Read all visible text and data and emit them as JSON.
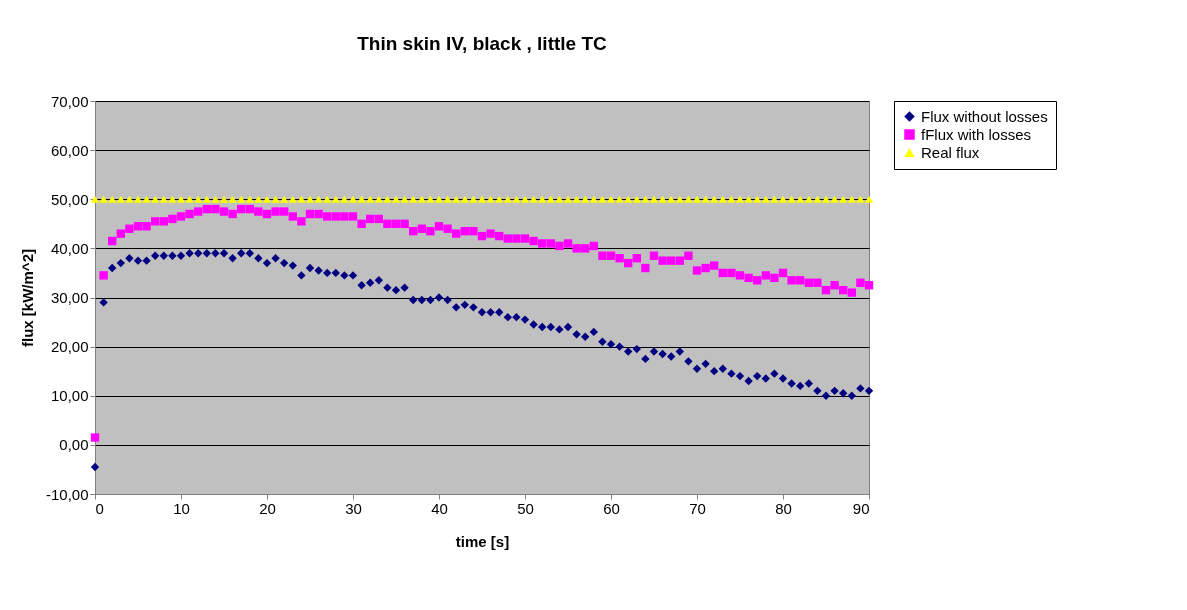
{
  "chart_data": {
    "type": "scatter",
    "title": "Thin skin IV, black , little TC",
    "xlabel": "time [s]",
    "ylabel": "flux [kW/m^2]",
    "x": [
      0,
      1,
      2,
      3,
      4,
      5,
      6,
      7,
      8,
      9,
      10,
      11,
      12,
      13,
      14,
      15,
      16,
      17,
      18,
      19,
      20,
      21,
      22,
      23,
      24,
      25,
      26,
      27,
      28,
      29,
      30,
      31,
      32,
      33,
      34,
      35,
      36,
      37,
      38,
      39,
      40,
      41,
      42,
      43,
      44,
      45,
      46,
      47,
      48,
      49,
      50,
      51,
      52,
      53,
      54,
      55,
      56,
      57,
      58,
      59,
      60,
      61,
      62,
      63,
      64,
      65,
      66,
      67,
      68,
      69,
      70,
      71,
      72,
      73,
      74,
      75,
      76,
      77,
      78,
      79,
      80,
      81,
      82,
      83,
      84,
      85,
      86,
      87,
      88,
      89,
      90
    ],
    "series": [
      {
        "name": "Flux without losses",
        "color": "#000080",
        "marker": "diamond",
        "values": [
          -4.5,
          29,
          36,
          37,
          38,
          37.5,
          37.5,
          38.5,
          38.5,
          38.5,
          38.5,
          39,
          39,
          39,
          39,
          39,
          38,
          39,
          39,
          38,
          37,
          38,
          37,
          36.5,
          34.5,
          36,
          35.5,
          35,
          35,
          34.5,
          34.5,
          32.5,
          33,
          33.5,
          32,
          31.5,
          32,
          29.5,
          29.5,
          29.5,
          30,
          29.5,
          28,
          28.5,
          28,
          27,
          27,
          27,
          26,
          26,
          25.5,
          24.5,
          24,
          24,
          23.5,
          24,
          22.5,
          22,
          23,
          21,
          20.5,
          20,
          19,
          19.5,
          17.5,
          19,
          18.5,
          18,
          19,
          17,
          15.5,
          16.5,
          15,
          15.5,
          14.5,
          14,
          13,
          14,
          13.5,
          14.5,
          13.5,
          12.5,
          12,
          12.5,
          11,
          10,
          11,
          10.5,
          10,
          11.5,
          11
        ]
      },
      {
        "name": "fFlux with losses",
        "color": "#ff00ff",
        "marker": "square",
        "values": [
          1.5,
          34.5,
          41.5,
          43,
          44,
          44.5,
          44.5,
          45.5,
          45.5,
          46,
          46.5,
          47,
          47.5,
          48,
          48,
          47.5,
          47,
          48,
          48,
          47.5,
          47,
          47.5,
          47.5,
          46.5,
          45.5,
          47,
          47,
          46.5,
          46.5,
          46.5,
          46.5,
          45,
          46,
          46,
          45,
          45,
          45,
          43.5,
          44,
          43.5,
          44.5,
          44,
          43,
          43.5,
          43.5,
          42.5,
          43,
          42.5,
          42,
          42,
          42,
          41.5,
          41,
          41,
          40.5,
          41,
          40,
          40,
          40.5,
          38.5,
          38.5,
          38,
          37,
          38,
          36,
          38.5,
          37.5,
          37.5,
          37.5,
          38.5,
          35.5,
          36,
          36.5,
          35,
          35,
          34.5,
          34,
          33.5,
          34.5,
          34,
          35,
          33.5,
          33.5,
          33,
          33,
          31.5,
          32.5,
          31.5,
          31,
          33,
          32.5
        ]
      },
      {
        "name": "Real flux",
        "color": "#ffff00",
        "marker": "triangle",
        "values": [
          50,
          50,
          50,
          50,
          50,
          50,
          50,
          50,
          50,
          50,
          50,
          50,
          50,
          50,
          50,
          50,
          50,
          50,
          50,
          50,
          50,
          50,
          50,
          50,
          50,
          50,
          50,
          50,
          50,
          50,
          50,
          50,
          50,
          50,
          50,
          50,
          50,
          50,
          50,
          50,
          50,
          50,
          50,
          50,
          50,
          50,
          50,
          50,
          50,
          50,
          50,
          50,
          50,
          50,
          50,
          50,
          50,
          50,
          50,
          50,
          50,
          50,
          50,
          50,
          50,
          50,
          50,
          50,
          50,
          50,
          50,
          50,
          50,
          50,
          50,
          50,
          50,
          50,
          50,
          50,
          50,
          50,
          50,
          50,
          50,
          50,
          50,
          50,
          50,
          50,
          50
        ]
      }
    ],
    "xlim": [
      0,
      90
    ],
    "xticks": [
      0,
      10,
      20,
      30,
      40,
      50,
      60,
      70,
      80,
      90
    ],
    "ylim": [
      -10,
      70
    ],
    "yticks": [
      {
        "value": -10,
        "label": "-10,00"
      },
      {
        "value": 0,
        "label": "0,00"
      },
      {
        "value": 10,
        "label": "10,00"
      },
      {
        "value": 20,
        "label": "20,00"
      },
      {
        "value": 30,
        "label": "30,00"
      },
      {
        "value": 40,
        "label": "40,00"
      },
      {
        "value": 50,
        "label": "50,00"
      },
      {
        "value": 60,
        "label": "60,00"
      },
      {
        "value": 70,
        "label": "70,00"
      }
    ],
    "grid": "y",
    "legend": "right"
  }
}
